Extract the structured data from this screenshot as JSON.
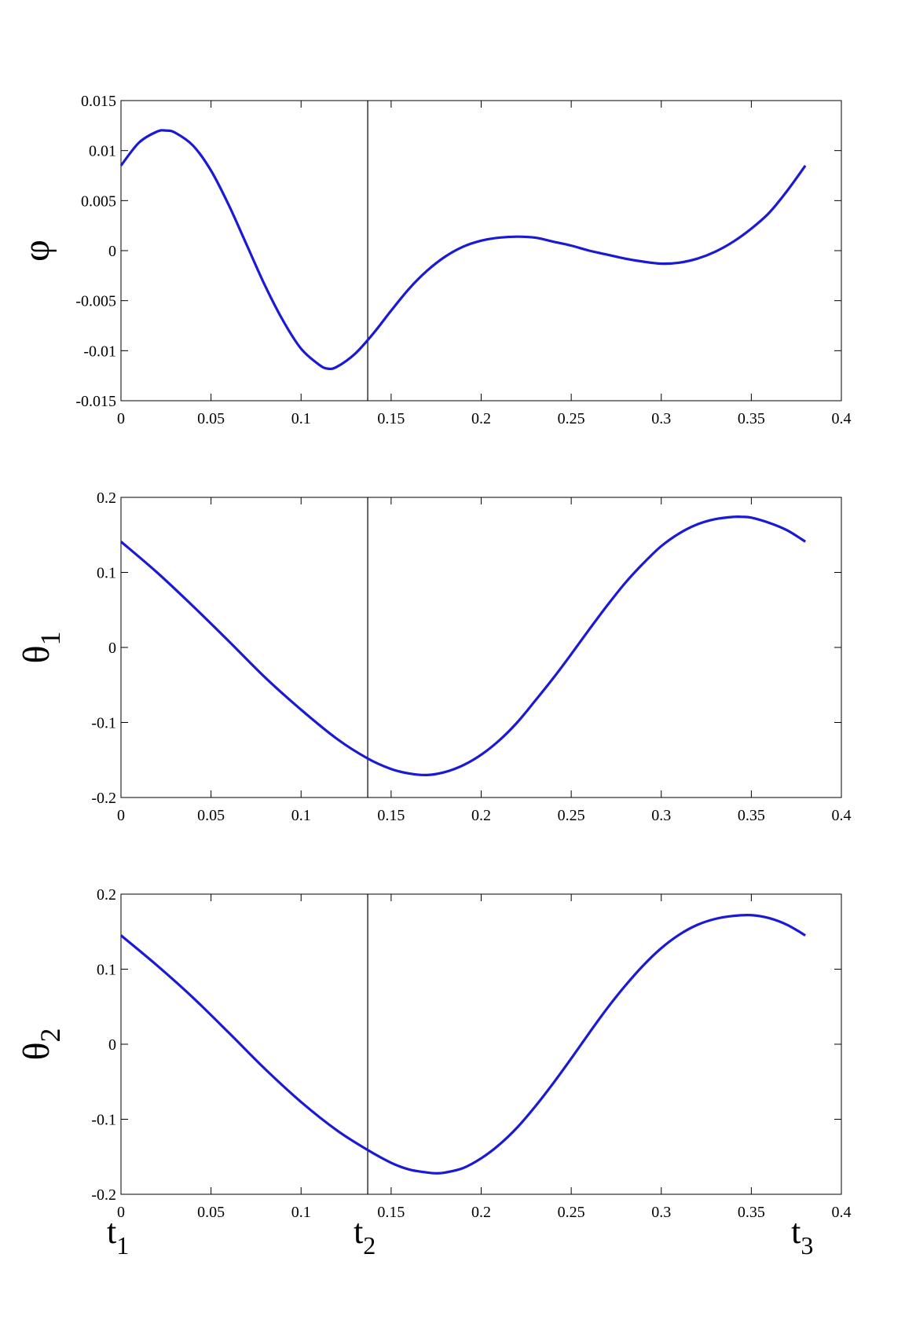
{
  "chart_data": [
    {
      "type": "line",
      "ylabel": "φ",
      "ylabel_sub": "",
      "xlim": [
        0,
        0.4
      ],
      "ylim": [
        -0.015,
        0.015
      ],
      "xticks": [
        "0",
        "0.05",
        "0.1",
        "0.15",
        "0.2",
        "0.25",
        "0.3",
        "0.35",
        "0.4"
      ],
      "yticks": [
        "-0.015",
        "-0.01",
        "-0.005",
        "0",
        "0.005",
        "0.01",
        "0.015"
      ],
      "vline_x": 0.137,
      "line_color": "#1a1ad6",
      "series": [
        {
          "x": [
            0,
            0.01,
            0.02,
            0.025,
            0.03,
            0.04,
            0.05,
            0.06,
            0.07,
            0.08,
            0.09,
            0.1,
            0.11,
            0.115,
            0.12,
            0.13,
            0.14,
            0.15,
            0.16,
            0.17,
            0.18,
            0.19,
            0.2,
            0.21,
            0.22,
            0.23,
            0.24,
            0.25,
            0.26,
            0.27,
            0.28,
            0.29,
            0.3,
            0.31,
            0.32,
            0.33,
            0.34,
            0.35,
            0.36,
            0.37,
            0.38
          ],
          "y": [
            0.0085,
            0.0108,
            0.0119,
            0.012,
            0.0118,
            0.0105,
            0.008,
            0.0045,
            0.0005,
            -0.0035,
            -0.007,
            -0.0098,
            -0.0114,
            -0.0118,
            -0.0116,
            -0.0103,
            -0.0083,
            -0.006,
            -0.0038,
            -0.002,
            -0.0006,
            0.0004,
            0.001,
            0.0013,
            0.0014,
            0.0013,
            0.0009,
            0.0005,
            0.0,
            -0.0004,
            -0.0008,
            -0.0011,
            -0.0013,
            -0.0012,
            -0.0008,
            -0.0001,
            0.0009,
            0.0022,
            0.0038,
            0.006,
            0.0085
          ]
        }
      ]
    },
    {
      "type": "line",
      "ylabel": "θ",
      "ylabel_sub": "1",
      "xlim": [
        0,
        0.4
      ],
      "ylim": [
        -0.2,
        0.2
      ],
      "xticks": [
        "0",
        "0.05",
        "0.1",
        "0.15",
        "0.2",
        "0.25",
        "0.3",
        "0.35",
        "0.4"
      ],
      "yticks": [
        "-0.2",
        "-0.1",
        "0",
        "0.1",
        "0.2"
      ],
      "vline_x": 0.137,
      "line_color": "#1a1ad6",
      "series": [
        {
          "x": [
            0,
            0.02,
            0.04,
            0.06,
            0.08,
            0.1,
            0.12,
            0.137,
            0.15,
            0.16,
            0.17,
            0.18,
            0.19,
            0.2,
            0.21,
            0.22,
            0.23,
            0.24,
            0.25,
            0.26,
            0.27,
            0.28,
            0.29,
            0.3,
            0.31,
            0.32,
            0.33,
            0.34,
            0.345,
            0.35,
            0.36,
            0.37,
            0.38
          ],
          "y": [
            0.141,
            0.1,
            0.055,
            0.008,
            -0.04,
            -0.083,
            -0.122,
            -0.148,
            -0.162,
            -0.168,
            -0.17,
            -0.166,
            -0.157,
            -0.143,
            -0.124,
            -0.1,
            -0.071,
            -0.041,
            -0.009,
            0.024,
            0.056,
            0.086,
            0.112,
            0.135,
            0.152,
            0.164,
            0.171,
            0.174,
            0.174,
            0.173,
            0.166,
            0.156,
            0.141
          ]
        }
      ]
    },
    {
      "type": "line",
      "ylabel": "θ",
      "ylabel_sub": "2",
      "xlim": [
        0,
        0.4
      ],
      "ylim": [
        -0.2,
        0.2
      ],
      "xticks": [
        "0",
        "0.05",
        "0.1",
        "0.15",
        "0.2",
        "0.25",
        "0.3",
        "0.35",
        "0.4"
      ],
      "yticks": [
        "-0.2",
        "-0.1",
        "0",
        "0.1",
        "0.2"
      ],
      "vline_x": 0.137,
      "line_color": "#1a1ad6",
      "series": [
        {
          "x": [
            0,
            0.02,
            0.04,
            0.06,
            0.08,
            0.1,
            0.12,
            0.137,
            0.15,
            0.16,
            0.17,
            0.175,
            0.18,
            0.19,
            0.2,
            0.21,
            0.22,
            0.23,
            0.24,
            0.25,
            0.26,
            0.27,
            0.28,
            0.29,
            0.3,
            0.31,
            0.32,
            0.33,
            0.34,
            0.35,
            0.36,
            0.37,
            0.38
          ],
          "y": [
            0.145,
            0.105,
            0.062,
            0.015,
            -0.033,
            -0.077,
            -0.115,
            -0.141,
            -0.158,
            -0.167,
            -0.171,
            -0.172,
            -0.171,
            -0.165,
            -0.152,
            -0.134,
            -0.111,
            -0.083,
            -0.052,
            -0.019,
            0.015,
            0.048,
            0.078,
            0.105,
            0.128,
            0.146,
            0.159,
            0.167,
            0.171,
            0.172,
            0.168,
            0.159,
            0.145
          ]
        }
      ]
    }
  ],
  "time_markers": [
    {
      "label": "t",
      "sub": "1",
      "x": 0
    },
    {
      "label": "t",
      "sub": "2",
      "x": 0.137
    },
    {
      "label": "t",
      "sub": "3",
      "x": 0.38
    }
  ]
}
